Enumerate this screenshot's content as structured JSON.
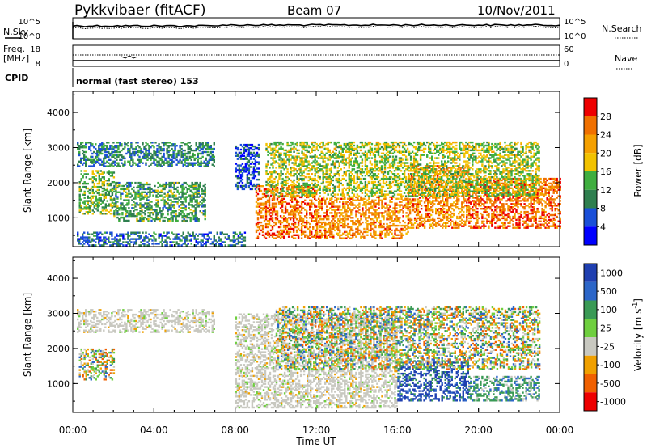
{
  "header": {
    "station": "Pykkvibaer (fitACF)",
    "beam": "Beam 07",
    "date": "10/Nov/2011"
  },
  "top_panels": {
    "nsky_label": "N.Sky",
    "nsearch_label": "N.Search",
    "noise_ticks_left": [
      "10^5",
      "10^0"
    ],
    "noise_ticks_right": [
      "10^5",
      "10^0"
    ],
    "freq_label": "Freq.",
    "freq_unit": "[MHz]",
    "freq_ticks": [
      "18",
      "8"
    ],
    "nave_label": "Nave",
    "nave_ticks": [
      "60",
      "0"
    ],
    "cpid_label": "CPID",
    "cpid_text": "normal (fast stereo) 153"
  },
  "chart_data": [
    {
      "type": "heatmap",
      "title": "",
      "xlabel": "Time UT",
      "ylabel": "Slant Range [km]",
      "xlim": [
        "00:00",
        "24:00"
      ],
      "ylim": [
        180,
        4600
      ],
      "x_ticks": [
        "00:00",
        "04:00",
        "08:00",
        "12:00",
        "16:00",
        "20:00",
        "00:00"
      ],
      "y_ticks": [
        1000,
        2000,
        3000,
        4000
      ],
      "colorbar": {
        "label": "Power [dB]",
        "range": [
          0,
          32
        ],
        "ticks": [
          4,
          8,
          12,
          16,
          20,
          24,
          28
        ],
        "colors": [
          "#0000ff",
          "#1a4fd8",
          "#2f7f4f",
          "#3fae3f",
          "#f2c200",
          "#f5a000",
          "#f07000",
          "#ee0000"
        ]
      },
      "regions": [
        {
          "t0": 0.2,
          "t1": 7.0,
          "r0": 2450,
          "r1": 3150,
          "level": 10
        },
        {
          "t0": 0.3,
          "t1": 2.0,
          "r0": 1100,
          "r1": 2350,
          "level": 14
        },
        {
          "t0": 2.0,
          "t1": 6.5,
          "r0": 900,
          "r1": 2000,
          "level": 12
        },
        {
          "t0": 0.2,
          "t1": 8.5,
          "r0": 200,
          "r1": 600,
          "level": 8
        },
        {
          "t0": 8.0,
          "t1": 9.2,
          "r0": 1800,
          "r1": 3100,
          "level": 6
        },
        {
          "t0": 9.0,
          "t1": 12.0,
          "r0": 400,
          "r1": 1900,
          "level": 26
        },
        {
          "t0": 12.0,
          "t1": 16.5,
          "r0": 400,
          "r1": 1600,
          "level": 24
        },
        {
          "t0": 16.5,
          "t1": 19.5,
          "r0": 700,
          "r1": 2500,
          "level": 24
        },
        {
          "t0": 19.5,
          "t1": 24.0,
          "r0": 700,
          "r1": 2100,
          "level": 26
        },
        {
          "t0": 9.5,
          "t1": 23.0,
          "r0": 1600,
          "r1": 3150,
          "level": 16
        }
      ]
    },
    {
      "type": "heatmap",
      "title": "",
      "xlabel": "Time UT",
      "ylabel": "Slant Range [km]",
      "xlim": [
        "00:00",
        "24:00"
      ],
      "ylim": [
        180,
        4600
      ],
      "x_ticks": [
        "00:00",
        "04:00",
        "08:00",
        "12:00",
        "16:00",
        "20:00",
        "00:00"
      ],
      "y_ticks": [
        1000,
        2000,
        3000,
        4000
      ],
      "colorbar": {
        "label": "Velocity [m s^-1]",
        "tick_labels": [
          "1000",
          "500",
          "100",
          "25",
          "-25",
          "-100",
          "-500",
          "-1000"
        ],
        "colors": [
          "#1f3fb0",
          "#2c66c8",
          "#3a9a55",
          "#6fcf3f",
          "#c8c8c0",
          "#f0a000",
          "#f06000",
          "#ee0000"
        ]
      },
      "regions": [
        {
          "t0": 0.2,
          "t1": 7.0,
          "r0": 2450,
          "r1": 3100,
          "level": "ground"
        },
        {
          "t0": 8.0,
          "t1": 16.0,
          "r0": 300,
          "r1": 3000,
          "level": "ground"
        },
        {
          "t0": 16.0,
          "t1": 19.5,
          "r0": 500,
          "r1": 1600,
          "level": "away"
        },
        {
          "t0": 19.5,
          "t1": 23.0,
          "r0": 500,
          "r1": 1200,
          "level": "away-slow"
        },
        {
          "t0": 0.3,
          "t1": 2.0,
          "r0": 1100,
          "r1": 2000,
          "level": "mixed"
        },
        {
          "t0": 10.0,
          "t1": 23.0,
          "r0": 1400,
          "r1": 3200,
          "level": "mixed"
        }
      ]
    }
  ]
}
